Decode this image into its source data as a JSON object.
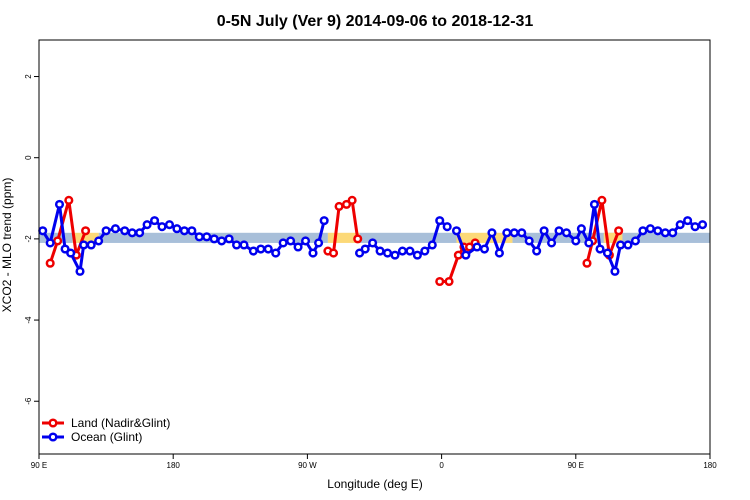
{
  "chart_data": {
    "type": "line",
    "title": "0-5N July (Ver 9)   2014-09-06 to 2018-12-31",
    "xlabel": "Longitude (deg E)",
    "ylabel": "XCO2 - MLO trend (ppm)",
    "xlim": [
      90,
      450
    ],
    "ylim": [
      -7.3,
      2.9
    ],
    "xticks": [
      {
        "value": 90,
        "label": "90 E"
      },
      {
        "value": 162,
        "label": "180"
      },
      {
        "value": 234,
        "label": "90 W"
      },
      {
        "value": 306,
        "label": "0"
      },
      {
        "value": 378,
        "label": "90 E"
      },
      {
        "value": 450,
        "label": "180"
      }
    ],
    "yticks": [
      {
        "value": -6,
        "label": "-6"
      },
      {
        "value": -4,
        "label": "-4"
      },
      {
        "value": -2,
        "label": "-2"
      },
      {
        "value": 0,
        "label": "0"
      },
      {
        "value": 2,
        "label": "2"
      }
    ],
    "grid": false,
    "legend_position": "bottom-left",
    "bands": [
      {
        "name": "ocean-band",
        "color": "#a8bfd9",
        "y0": -2.1,
        "y1": -1.85,
        "segments": [
          [
            90,
            108
          ],
          [
            122,
            245
          ],
          [
            262,
            314
          ],
          [
            344,
            450
          ]
        ]
      },
      {
        "name": "land-band",
        "color": "#fcd978",
        "y0": -2.1,
        "y1": -1.85,
        "segments": [
          [
            108,
            122
          ],
          [
            245,
            262
          ],
          [
            314,
            344
          ],
          [
            393,
            403
          ]
        ]
      }
    ],
    "series": [
      {
        "name": "Land (Nadir&Glint)",
        "color": "#ee0000",
        "segments": [
          [
            [
              96,
              -2.6
            ],
            [
              100,
              -2.05
            ],
            [
              106,
              -1.05
            ],
            [
              110,
              -2.4
            ],
            [
              115,
              -1.8
            ]
          ],
          [
            [
              245,
              -2.3
            ],
            [
              248,
              -2.35
            ],
            [
              251,
              -1.2
            ],
            [
              255,
              -1.15
            ],
            [
              258,
              -1.05
            ],
            [
              261,
              -2.0
            ]
          ],
          [
            [
              305,
              -3.05
            ],
            [
              310,
              -3.05
            ],
            [
              315,
              -2.4
            ],
            [
              318,
              -2.2
            ],
            [
              321,
              -2.2
            ],
            [
              324,
              -2.1
            ]
          ],
          [
            [
              384,
              -2.6
            ],
            [
              387,
              -2.05
            ],
            [
              392,
              -1.05
            ],
            [
              396,
              -2.4
            ],
            [
              401,
              -1.8
            ]
          ]
        ]
      },
      {
        "name": "Ocean (Glint)",
        "color": "#0000ee",
        "segments": [
          [
            [
              92,
              -1.8
            ],
            [
              96,
              -2.1
            ],
            [
              101,
              -1.15
            ],
            [
              104,
              -2.25
            ],
            [
              107,
              -2.35
            ],
            [
              112,
              -2.8
            ],
            [
              114,
              -2.15
            ],
            [
              118,
              -2.15
            ],
            [
              122,
              -2.05
            ],
            [
              126,
              -1.8
            ],
            [
              131,
              -1.75
            ],
            [
              136,
              -1.8
            ],
            [
              140,
              -1.85
            ],
            [
              144,
              -1.85
            ],
            [
              148,
              -1.65
            ],
            [
              152,
              -1.55
            ],
            [
              156,
              -1.7
            ],
            [
              160,
              -1.65
            ],
            [
              164,
              -1.75
            ],
            [
              168,
              -1.8
            ],
            [
              172,
              -1.8
            ],
            [
              176,
              -1.95
            ],
            [
              180,
              -1.95
            ],
            [
              184,
              -2.0
            ],
            [
              188,
              -2.05
            ],
            [
              192,
              -2.0
            ],
            [
              196,
              -2.15
            ],
            [
              200,
              -2.15
            ],
            [
              205,
              -2.3
            ],
            [
              209,
              -2.25
            ],
            [
              213,
              -2.25
            ],
            [
              217,
              -2.35
            ],
            [
              221,
              -2.1
            ],
            [
              225,
              -2.05
            ],
            [
              229,
              -2.2
            ],
            [
              233,
              -2.05
            ],
            [
              237,
              -2.35
            ],
            [
              240,
              -2.1
            ],
            [
              243,
              -1.55
            ]
          ],
          [
            [
              262,
              -2.35
            ],
            [
              265,
              -2.25
            ],
            [
              269,
              -2.1
            ],
            [
              273,
              -2.3
            ],
            [
              277,
              -2.35
            ],
            [
              281,
              -2.4
            ],
            [
              285,
              -2.3
            ],
            [
              289,
              -2.3
            ],
            [
              293,
              -2.4
            ],
            [
              297,
              -2.3
            ],
            [
              301,
              -2.15
            ],
            [
              305,
              -1.55
            ],
            [
              309,
              -1.7
            ]
          ],
          [
            [
              314,
              -1.8
            ],
            [
              319,
              -2.4
            ],
            [
              325,
              -2.2
            ],
            [
              329,
              -2.25
            ],
            [
              333,
              -1.85
            ],
            [
              337,
              -2.35
            ],
            [
              341,
              -1.85
            ],
            [
              345,
              -1.85
            ],
            [
              349,
              -1.85
            ],
            [
              353,
              -2.05
            ],
            [
              357,
              -2.3
            ],
            [
              361,
              -1.8
            ],
            [
              365,
              -2.1
            ],
            [
              369,
              -1.8
            ],
            [
              373,
              -1.85
            ],
            [
              378,
              -2.05
            ],
            [
              381,
              -1.75
            ],
            [
              385,
              -2.1
            ],
            [
              388,
              -1.15
            ],
            [
              391,
              -2.25
            ],
            [
              395,
              -2.35
            ],
            [
              399,
              -2.8
            ],
            [
              402,
              -2.15
            ],
            [
              406,
              -2.15
            ],
            [
              410,
              -2.05
            ],
            [
              414,
              -1.8
            ],
            [
              418,
              -1.75
            ],
            [
              422,
              -1.8
            ],
            [
              426,
              -1.85
            ],
            [
              430,
              -1.85
            ],
            [
              434,
              -1.65
            ],
            [
              438,
              -1.55
            ],
            [
              442,
              -1.7
            ],
            [
              446,
              -1.65
            ]
          ]
        ]
      }
    ]
  }
}
